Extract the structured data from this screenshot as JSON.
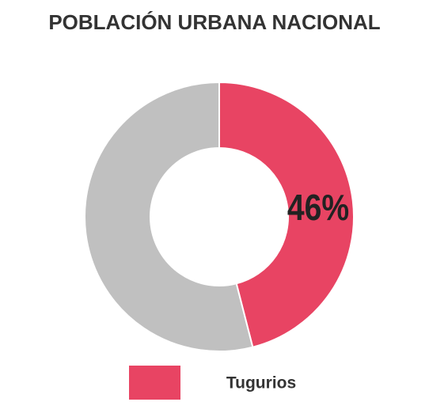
{
  "chart_data": {
    "type": "donut",
    "title": "POBLACIÓN URBANA NACIONAL",
    "categories": [
      "Tugurios",
      null
    ],
    "values": [
      46,
      54
    ],
    "value_labels": [
      "46%",
      null
    ],
    "colors": [
      "#e84463",
      "#c0c0c0"
    ],
    "legend": "bottom"
  }
}
